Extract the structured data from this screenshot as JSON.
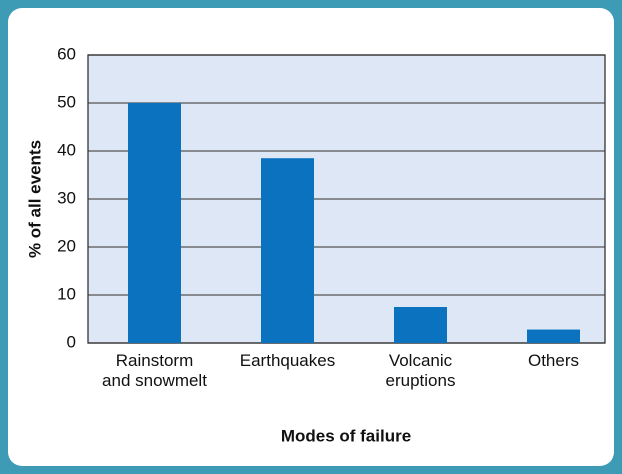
{
  "chart_data": {
    "type": "bar",
    "categories": [
      "Rainstorm\nand snowmelt",
      "Earthquakes",
      "Volcanic\neruptions",
      "Others"
    ],
    "values": [
      50,
      38.5,
      7.5,
      2.8
    ],
    "color": "#0b72c0",
    "ylim": [
      0,
      60
    ],
    "yticks": [
      0,
      10,
      20,
      30,
      40,
      50,
      60
    ],
    "grid": true,
    "ylabel": "% of all events",
    "xlabel": "Modes of failure"
  }
}
